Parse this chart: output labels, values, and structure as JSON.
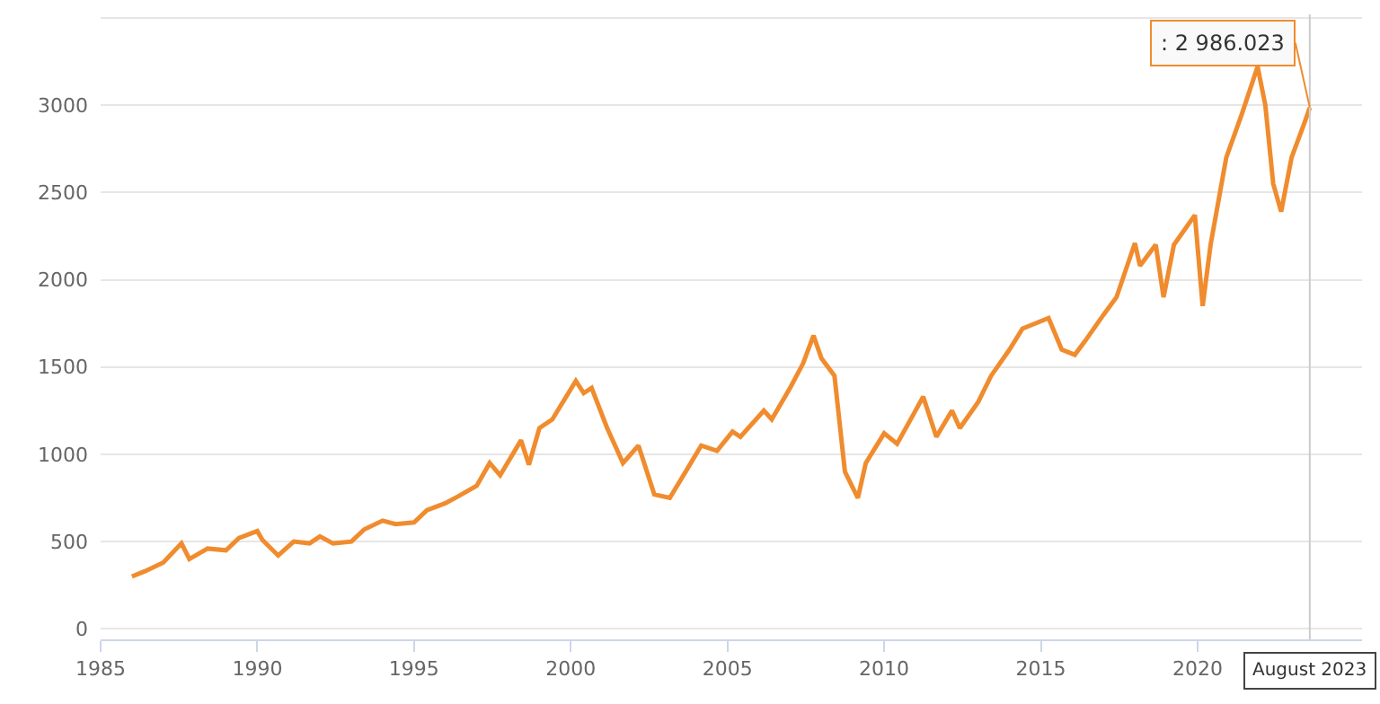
{
  "chart_data": {
    "type": "line",
    "x": [
      "1986-01",
      "1986-06",
      "1987-01",
      "1987-08",
      "1987-11",
      "1988-06",
      "1989-01",
      "1989-06",
      "1990-01",
      "1990-03",
      "1990-09",
      "1991-03",
      "1991-09",
      "1992-01",
      "1992-06",
      "1993-01",
      "1993-06",
      "1994-01",
      "1994-06",
      "1995-01",
      "1995-06",
      "1996-01",
      "1996-06",
      "1997-01",
      "1997-06",
      "1997-10",
      "1998-06",
      "1998-09",
      "1999-01",
      "1999-06",
      "2000-03",
      "2000-06",
      "2000-09",
      "2001-03",
      "2001-09",
      "2002-03",
      "2002-09",
      "2003-03",
      "2003-09",
      "2004-03",
      "2004-09",
      "2005-03",
      "2005-06",
      "2006-03",
      "2006-06",
      "2007-01",
      "2007-06",
      "2007-10",
      "2008-01",
      "2008-06",
      "2008-10",
      "2009-03",
      "2009-06",
      "2010-01",
      "2010-06",
      "2011-04",
      "2011-09",
      "2012-03",
      "2012-06",
      "2013-01",
      "2013-06",
      "2014-01",
      "2014-06",
      "2015-04",
      "2015-09",
      "2016-02",
      "2016-06",
      "2017-01",
      "2017-06",
      "2018-01",
      "2018-03",
      "2018-09",
      "2018-12",
      "2019-04",
      "2019-12",
      "2020-03",
      "2020-06",
      "2020-12",
      "2021-06",
      "2021-12",
      "2022-03",
      "2022-06",
      "2022-09",
      "2023-01",
      "2023-06",
      "2023-08"
    ],
    "series": [
      {
        "color": "#f08c2e",
        "values": [
          300,
          330,
          380,
          490,
          400,
          460,
          450,
          520,
          560,
          510,
          420,
          500,
          490,
          530,
          490,
          500,
          570,
          620,
          600,
          610,
          680,
          720,
          760,
          820,
          950,
          880,
          1080,
          940,
          1150,
          1200,
          1420,
          1350,
          1380,
          1150,
          950,
          1050,
          770,
          750,
          900,
          1050,
          1020,
          1130,
          1100,
          1250,
          1200,
          1380,
          1520,
          1680,
          1550,
          1450,
          900,
          750,
          950,
          1120,
          1060,
          1330,
          1100,
          1250,
          1150,
          1300,
          1450,
          1600,
          1720,
          1780,
          1600,
          1570,
          1650,
          1800,
          1900,
          2210,
          2080,
          2200,
          1900,
          2200,
          2370,
          1850,
          2200,
          2700,
          2950,
          3220,
          3000,
          2550,
          2390,
          2700,
          2900,
          2986
        ]
      }
    ],
    "xlim": [
      "1985-01-01",
      "2025-04-01"
    ],
    "xticks": [
      {
        "value": "1985-01-01",
        "label": "1985"
      },
      {
        "value": "1990-01-01",
        "label": "1990"
      },
      {
        "value": "1995-01-01",
        "label": "1995"
      },
      {
        "value": "2000-01-01",
        "label": "2000"
      },
      {
        "value": "2005-01-01",
        "label": "2005"
      },
      {
        "value": "2010-01-01",
        "label": "2010"
      },
      {
        "value": "2015-01-01",
        "label": "2015"
      },
      {
        "value": "2020-01-01",
        "label": "2020"
      }
    ],
    "ylim": [
      -60,
      3520
    ],
    "yticks": [
      0,
      500,
      1000,
      1500,
      2000,
      2500,
      3000,
      {
        "value": 3500,
        "label": null
      }
    ],
    "grid": "y",
    "marker": "none",
    "line_style": "solid",
    "ref_lines": [
      {
        "axis": "x",
        "value": "2023-08",
        "label": "August 2023",
        "color": "#cccccc"
      }
    ],
    "annotations": [
      {
        "text": ": 2 986.023",
        "x": "2023-08",
        "y": 2986.023
      }
    ]
  }
}
